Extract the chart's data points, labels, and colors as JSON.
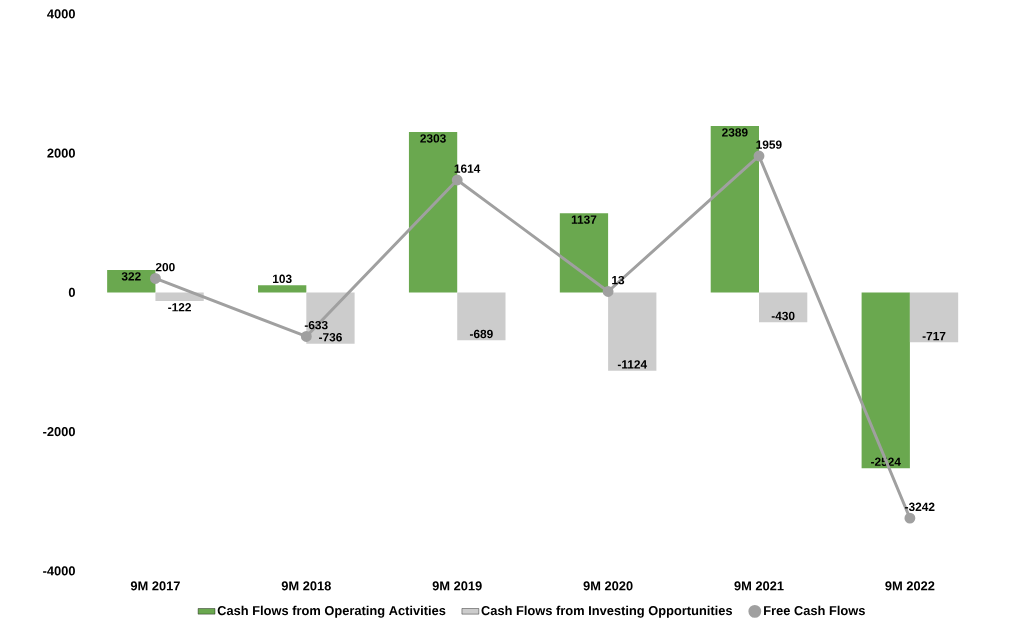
{
  "chart_data": {
    "type": "bar",
    "categories": [
      "9M 2017",
      "9M 2018",
      "9M 2019",
      "9M 2020",
      "9M 2021",
      "9M 2022"
    ],
    "series": [
      {
        "name": "Cash Flows from Operating Activities",
        "color": "#6aa84f",
        "values": [
          322,
          103,
          2303,
          1137,
          2389,
          -2524
        ]
      },
      {
        "name": "Cash Flows from Investing Opportunities",
        "color": "#cccccc",
        "values": [
          -122,
          -736,
          -689,
          -1124,
          -430,
          -717
        ]
      },
      {
        "name": "Free Cash Flows",
        "type": "line",
        "color": "#a0a0a0",
        "marker": "circle",
        "values": [
          200,
          -633,
          1614,
          13,
          1959,
          -3242
        ]
      }
    ],
    "ylim": [
      -4000,
      4000
    ],
    "yticks": [
      -4000,
      -2000,
      0,
      2000,
      4000
    ],
    "data_labels": true,
    "legend": "bottom",
    "grid": false
  }
}
